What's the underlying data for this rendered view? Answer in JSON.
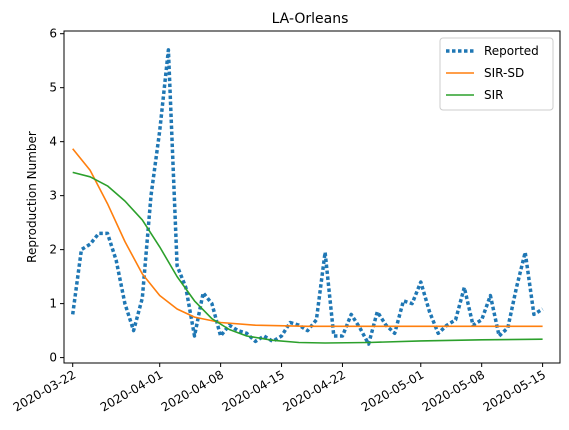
{
  "chart_data": {
    "type": "line",
    "title": "LA-Orleans",
    "xlabel": "",
    "ylabel": "Reproduction Number",
    "xlim": [
      "2020-03-21",
      "2020-05-17"
    ],
    "ylim": [
      -0.1,
      6.05
    ],
    "x_ticks": [
      "2020-03-22",
      "2020-04-01",
      "2020-04-08",
      "2020-04-15",
      "2020-04-22",
      "2020-05-01",
      "2020-05-08",
      "2020-05-15"
    ],
    "y_ticks": [
      0,
      1,
      2,
      3,
      4,
      5,
      6
    ],
    "grid": false,
    "legend": "top-right",
    "series": [
      {
        "name": "Reported",
        "style": "dotted",
        "color": "#1f77b4",
        "points": [
          [
            "2020-03-22",
            0.8
          ],
          [
            "2020-03-23",
            2.0
          ],
          [
            "2020-03-24",
            2.1
          ],
          [
            "2020-03-25",
            2.3
          ],
          [
            "2020-03-26",
            2.3
          ],
          [
            "2020-03-27",
            1.8
          ],
          [
            "2020-03-28",
            1.0
          ],
          [
            "2020-03-29",
            0.5
          ],
          [
            "2020-03-30",
            1.1
          ],
          [
            "2020-03-31",
            3.0
          ],
          [
            "2020-04-01",
            4.2
          ],
          [
            "2020-04-02",
            5.7
          ],
          [
            "2020-04-03",
            1.7
          ],
          [
            "2020-04-04",
            1.3
          ],
          [
            "2020-04-05",
            0.4
          ],
          [
            "2020-04-06",
            1.2
          ],
          [
            "2020-04-07",
            1.0
          ],
          [
            "2020-04-08",
            0.4
          ],
          [
            "2020-04-09",
            0.6
          ],
          [
            "2020-04-10",
            0.5
          ],
          [
            "2020-04-11",
            0.45
          ],
          [
            "2020-04-12",
            0.3
          ],
          [
            "2020-04-13",
            0.4
          ],
          [
            "2020-04-14",
            0.3
          ],
          [
            "2020-04-15",
            0.4
          ],
          [
            "2020-04-16",
            0.65
          ],
          [
            "2020-04-17",
            0.6
          ],
          [
            "2020-04-18",
            0.5
          ],
          [
            "2020-04-19",
            0.7
          ],
          [
            "2020-04-20",
            1.95
          ],
          [
            "2020-04-21",
            0.4
          ],
          [
            "2020-04-22",
            0.4
          ],
          [
            "2020-04-23",
            0.8
          ],
          [
            "2020-04-24",
            0.55
          ],
          [
            "2020-04-25",
            0.25
          ],
          [
            "2020-04-26",
            0.85
          ],
          [
            "2020-04-27",
            0.6
          ],
          [
            "2020-04-28",
            0.45
          ],
          [
            "2020-04-29",
            1.05
          ],
          [
            "2020-04-30",
            1.0
          ],
          [
            "2020-05-01",
            1.4
          ],
          [
            "2020-05-02",
            0.85
          ],
          [
            "2020-05-03",
            0.45
          ],
          [
            "2020-05-04",
            0.6
          ],
          [
            "2020-05-05",
            0.7
          ],
          [
            "2020-05-06",
            1.3
          ],
          [
            "2020-05-07",
            0.6
          ],
          [
            "2020-05-08",
            0.7
          ],
          [
            "2020-05-09",
            1.15
          ],
          [
            "2020-05-10",
            0.4
          ],
          [
            "2020-05-11",
            0.55
          ],
          [
            "2020-05-12",
            1.3
          ],
          [
            "2020-05-13",
            1.95
          ],
          [
            "2020-05-14",
            0.8
          ],
          [
            "2020-05-15",
            0.9
          ]
        ]
      },
      {
        "name": "SIR-SD",
        "style": "solid",
        "color": "#ff7f0e",
        "points": [
          [
            "2020-03-22",
            3.87
          ],
          [
            "2020-03-24",
            3.47
          ],
          [
            "2020-03-26",
            2.85
          ],
          [
            "2020-03-28",
            2.15
          ],
          [
            "2020-03-30",
            1.55
          ],
          [
            "2020-04-01",
            1.15
          ],
          [
            "2020-04-03",
            0.9
          ],
          [
            "2020-04-05",
            0.75
          ],
          [
            "2020-04-08",
            0.65
          ],
          [
            "2020-04-12",
            0.6
          ],
          [
            "2020-04-18",
            0.58
          ],
          [
            "2020-04-25",
            0.58
          ],
          [
            "2020-05-05",
            0.58
          ],
          [
            "2020-05-15",
            0.58
          ]
        ]
      },
      {
        "name": "SIR",
        "style": "solid",
        "color": "#2ca02c",
        "points": [
          [
            "2020-03-22",
            3.43
          ],
          [
            "2020-03-24",
            3.35
          ],
          [
            "2020-03-26",
            3.18
          ],
          [
            "2020-03-28",
            2.9
          ],
          [
            "2020-03-30",
            2.55
          ],
          [
            "2020-04-01",
            2.05
          ],
          [
            "2020-04-03",
            1.5
          ],
          [
            "2020-04-05",
            1.05
          ],
          [
            "2020-04-07",
            0.72
          ],
          [
            "2020-04-09",
            0.52
          ],
          [
            "2020-04-11",
            0.4
          ],
          [
            "2020-04-14",
            0.32
          ],
          [
            "2020-04-17",
            0.28
          ],
          [
            "2020-04-20",
            0.27
          ],
          [
            "2020-04-25",
            0.28
          ],
          [
            "2020-05-01",
            0.31
          ],
          [
            "2020-05-08",
            0.33
          ],
          [
            "2020-05-15",
            0.34
          ]
        ]
      }
    ]
  }
}
